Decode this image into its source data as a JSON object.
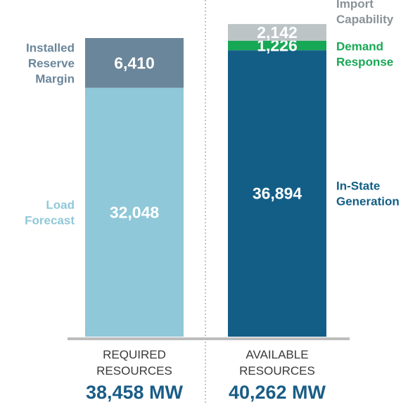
{
  "chart_data": {
    "type": "bar",
    "stacked": true,
    "categories": [
      "REQUIRED RESOURCES",
      "AVAILABLE RESOURCES"
    ],
    "ylim": [
      0,
      41000
    ],
    "grid": false,
    "legend": "side labels",
    "bars": [
      {
        "category": "REQUIRED RESOURCES",
        "category_lines": [
          "REQUIRED",
          "RESOURCES"
        ],
        "total_label": "38,458 MW",
        "segments": [
          {
            "name_lines": [
              "Load",
              "Forecast"
            ],
            "value": 32048,
            "label": "32,048",
            "color": "#8fc8d8",
            "label_color": "#8fc8d8",
            "side": "left"
          },
          {
            "name_lines": [
              "Installed",
              "Reserve",
              "Margin"
            ],
            "value": 6410,
            "label": "6,410",
            "color": "#6a869a",
            "label_color": "#6a869a",
            "side": "left"
          }
        ]
      },
      {
        "category": "AVAILABLE RESOURCES",
        "category_lines": [
          "AVAILABLE",
          "RESOURCES"
        ],
        "total_label": "40,262 MW",
        "segments": [
          {
            "name_lines": [
              "In-State",
              "Generation"
            ],
            "value": 36894,
            "label": "36,894",
            "color": "#135e86",
            "label_color": "#135e86",
            "side": "right"
          },
          {
            "name_lines": [
              "Demand",
              "Response"
            ],
            "value": 1226,
            "label": "1,226",
            "color": "#17a855",
            "label_color": "#17a855",
            "side": "right"
          },
          {
            "name_lines": [
              "Import",
              "Capability"
            ],
            "value": 2142,
            "label": "2,142",
            "color": "#bcc4c6",
            "label_color": "#8a9396",
            "side": "right"
          }
        ]
      }
    ]
  }
}
